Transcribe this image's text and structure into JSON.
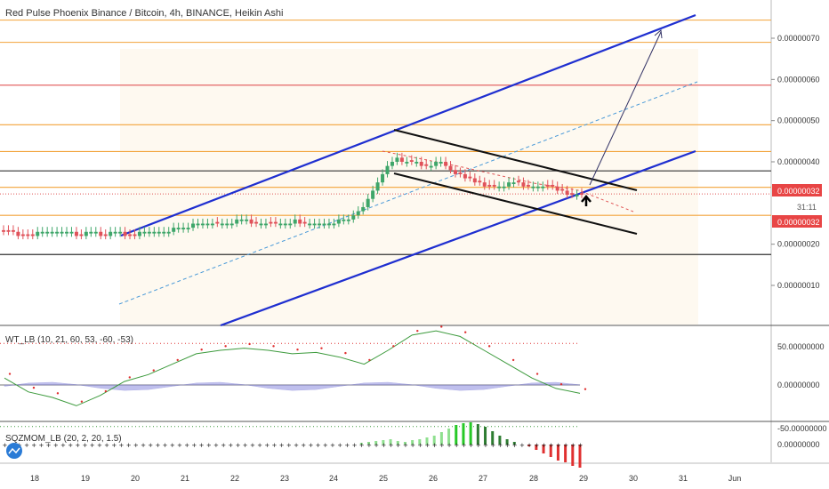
{
  "title": "Red Pulse Phoenix Binance / Bitcoin, 4h, BINANCE, Heikin Ashi",
  "colors": {
    "up": "#3fa66a",
    "down": "#e0525a",
    "channel": "#1f2fd0",
    "orange": "#f2a33a",
    "red_line": "#e05555",
    "dark": "#333333",
    "dashed_blue": "#4a9ad8",
    "wt_line": "#3c9a3c",
    "wt_dots": "#e03030",
    "wt_area": "#8c8ce0",
    "mom_up": "#26c926",
    "mom_down": "#e03030",
    "tag_red": "#e84545"
  },
  "price_axis": {
    "ticks": [
      "0.00000070",
      "0.00000060",
      "0.00000050",
      "0.00000040",
      "0.00000020",
      "0.00000010"
    ]
  },
  "last_price_tag": "0.00000032",
  "second_price_tag": "0.00000032",
  "countdown": "31:11",
  "x_axis": {
    "labels": [
      "18",
      "19",
      "20",
      "21",
      "22",
      "23",
      "24",
      "25",
      "26",
      "27",
      "28",
      "29",
      "30",
      "31",
      "Jun"
    ]
  },
  "wt_indicator": {
    "title": "WT_LB (10, 21, 60, 53, -60, -53)",
    "ticks": [
      "50.00000000",
      "0.00000000",
      "-50.00000000"
    ]
  },
  "mom_indicator": {
    "title": "SQZMOM_LB (20, 2, 20, 1.5)",
    "ticks": [
      "0.00000000"
    ]
  },
  "chart_data": {
    "type": "candlestick",
    "title": "Red Pulse Phoenix Binance / Bitcoin, 4h, BINANCE, Heikin Ashi",
    "y_unit": "BTC",
    "ylim": [
      0.0,
      7.8e-07
    ],
    "x_categories": [
      "18",
      "19",
      "20",
      "21",
      "22",
      "23",
      "24",
      "25",
      "26",
      "27",
      "28",
      "29",
      "30",
      "31",
      "Jun"
    ],
    "candles_close": [
      2.3e-07,
      2.3e-07,
      2.3e-07,
      2.2e-07,
      2.2e-07,
      2.2e-07,
      2.2e-07,
      2.3e-07,
      2.3e-07,
      2.3e-07,
      2.3e-07,
      2.3e-07,
      2.3e-07,
      2.3e-07,
      2.3e-07,
      2.2e-07,
      2.2e-07,
      2.3e-07,
      2.3e-07,
      2.3e-07,
      2.2e-07,
      2.2e-07,
      2.3e-07,
      2.3e-07,
      2.3e-07,
      2.2e-07,
      2.2e-07,
      2.2e-07,
      2.3e-07,
      2.3e-07,
      2.3e-07,
      2.3e-07,
      2.3e-07,
      2.3e-07,
      2.3e-07,
      2.4e-07,
      2.4e-07,
      2.4e-07,
      2.4e-07,
      2.5e-07,
      2.5e-07,
      2.5e-07,
      2.5e-07,
      2.5e-07,
      2.5e-07,
      2.5e-07,
      2.5e-07,
      2.5e-07,
      2.6e-07,
      2.6e-07,
      2.6e-07,
      2.5e-07,
      2.5e-07,
      2.5e-07,
      2.5e-07,
      2.5e-07,
      2.5e-07,
      2.5e-07,
      2.5e-07,
      2.5e-07,
      2.6e-07,
      2.5e-07,
      2.5e-07,
      2.5e-07,
      2.5e-07,
      2.5e-07,
      2.5e-07,
      2.5e-07,
      2.5e-07,
      2.6e-07,
      2.6e-07,
      2.6e-07,
      2.7e-07,
      2.8e-07,
      2.9e-07,
      3.1e-07,
      3.3e-07,
      3.5e-07,
      3.7e-07,
      3.9e-07,
      4e-07,
      4.1e-07,
      4e-07,
      4e-07,
      4e-07,
      4e-07,
      3.9e-07,
      3.9e-07,
      3.9e-07,
      4e-07,
      4e-07,
      3.9e-07,
      3.8e-07,
      3.7e-07,
      3.7e-07,
      3.6e-07,
      3.6e-07,
      3.5e-07,
      3.5e-07,
      3.4e-07,
      3.4e-07,
      3.4e-07,
      3.4e-07,
      3.4e-07,
      3.5e-07,
      3.5e-07,
      3.5e-07,
      3.4e-07,
      3.4e-07,
      3.4e-07,
      3.4e-07,
      3.4e-07,
      3.4e-07,
      3.4e-07,
      3.3e-07,
      3.3e-07,
      3.2e-07,
      3.2e-07,
      3.2e-07,
      3.2e-07
    ],
    "candles_direction": [
      "down",
      "down",
      "down",
      "down",
      "down",
      "down",
      "down",
      "up",
      "up",
      "up",
      "up",
      "up",
      "up",
      "up",
      "up",
      "down",
      "down",
      "up",
      "up",
      "up",
      "down",
      "down",
      "up",
      "up",
      "up",
      "down",
      "down",
      "down",
      "up",
      "up",
      "up",
      "up",
      "up",
      "up",
      "up",
      "up",
      "up",
      "up",
      "up",
      "up",
      "up",
      "up",
      "up",
      "up",
      "down",
      "up",
      "up",
      "up",
      "up",
      "up",
      "up",
      "down",
      "down",
      "up",
      "up",
      "down",
      "down",
      "up",
      "up",
      "up",
      "up",
      "down",
      "down",
      "up",
      "up",
      "up",
      "up",
      "up",
      "up",
      "up",
      "up",
      "up",
      "up",
      "up",
      "up",
      "up",
      "up",
      "up",
      "up",
      "up",
      "up",
      "up",
      "down",
      "up",
      "down",
      "up",
      "down",
      "down",
      "up",
      "up",
      "up",
      "down",
      "down",
      "down",
      "down",
      "down",
      "down",
      "down",
      "down",
      "down",
      "down",
      "down",
      "up",
      "up",
      "up",
      "up",
      "down",
      "down",
      "down",
      "up",
      "up",
      "up",
      "down",
      "down",
      "down",
      "down",
      "down",
      "down",
      "up",
      "down"
    ],
    "horizontal_levels": [
      {
        "price": 7.44e-07,
        "color": "orange"
      },
      {
        "price": 6.9e-07,
        "color": "orange"
      },
      {
        "price": 5.86e-07,
        "color": "red"
      },
      {
        "price": 4.9e-07,
        "color": "orange"
      },
      {
        "price": 4.25e-07,
        "color": "orange"
      },
      {
        "price": 3.78e-07,
        "color": "dark"
      },
      {
        "price": 3.38e-07,
        "color": "orange"
      },
      {
        "price": 2.7e-07,
        "color": "orange"
      },
      {
        "price": 1.75e-07,
        "color": "dark"
      }
    ]
  }
}
